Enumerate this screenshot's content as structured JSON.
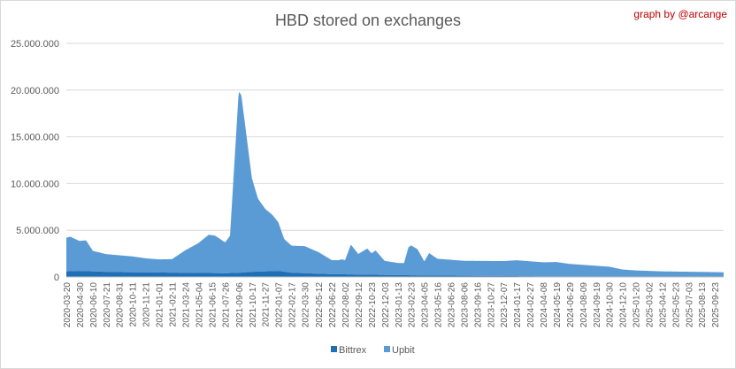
{
  "chart_data": {
    "type": "area",
    "stacked": true,
    "title": "HBD stored on exchanges",
    "annotation": "graph by @arcange",
    "y_ticks": [
      "0",
      "5.000.000",
      "10.000.000",
      "15.000.000",
      "20.000.000",
      "25.000.000"
    ],
    "ylim": [
      0,
      25000000
    ],
    "grid": "horizontal",
    "legend_position": "bottom",
    "x_tick_labels": [
      "2020-03-20",
      "2020-04-30",
      "2020-06-10",
      "2020-07-21",
      "2020-08-31",
      "2020-10-11",
      "2020-11-21",
      "2021-01-01",
      "2021-02-11",
      "2021-03-24",
      "2021-05-04",
      "2021-06-15",
      "2021-07-26",
      "2021-09-06",
      "2021-10-17",
      "2021-11-27",
      "2022-01-07",
      "2022-02-17",
      "2022-03-30",
      "2022-05-12",
      "2022-06-22",
      "2022-08-02",
      "2022-09-12",
      "2022-10-23",
      "2022-12-03",
      "2023-01-13",
      "2023-02-23",
      "2023-04-05",
      "2023-05-16",
      "2023-06-26",
      "2023-08-06",
      "2023-09-16",
      "2023-10-27",
      "2023-12-07",
      "2024-01-17",
      "2024-02-27",
      "2024-04-08",
      "2024-05-19",
      "2024-06-29",
      "2024-08-09",
      "2024-09-19",
      "2024-10-30",
      "2024-12-10",
      "2025-01-20",
      "2025-03-02",
      "2025-04-12",
      "2025-05-23",
      "2025-07-03",
      "2025-08-13",
      "2025-09-23"
    ],
    "series": [
      {
        "name": "Bittrex",
        "color": "#1f6fb7",
        "x": [
          "2020-03-20",
          "2020-04-30",
          "2020-06-10",
          "2020-07-21",
          "2020-08-31",
          "2020-10-11",
          "2020-11-21",
          "2021-01-01",
          "2021-02-11",
          "2021-03-24",
          "2021-05-04",
          "2021-06-15",
          "2021-07-26",
          "2021-09-06",
          "2021-10-17",
          "2021-11-27",
          "2022-01-07",
          "2022-02-17",
          "2022-03-30",
          "2022-05-12",
          "2022-06-22",
          "2022-08-02",
          "2022-09-12",
          "2022-10-23",
          "2022-12-03",
          "2023-01-13",
          "2023-02-23",
          "2023-04-05",
          "2023-05-16",
          "2023-06-26",
          "2023-08-06",
          "2023-09-16",
          "2023-10-27",
          "2023-12-07",
          "2024-01-17",
          "2024-02-27",
          "2024-04-08",
          "2024-05-19",
          "2024-06-29",
          "2024-08-09",
          "2024-09-19",
          "2024-10-30",
          "2024-12-10",
          "2025-01-20",
          "2025-03-02",
          "2025-04-12",
          "2025-05-23",
          "2025-07-03",
          "2025-08-13",
          "2025-09-23",
          "2025-10-20"
        ],
        "values": [
          600000,
          650000,
          600000,
          550000,
          520000,
          500000,
          500000,
          480000,
          460000,
          450000,
          430000,
          420000,
          400000,
          450000,
          550000,
          600000,
          650000,
          450000,
          400000,
          350000,
          300000,
          280000,
          260000,
          240000,
          220000,
          200000,
          180000,
          160000,
          150000,
          140000,
          130000,
          120000,
          110000,
          100000,
          90000,
          80000,
          70000,
          0,
          0,
          0,
          0,
          0,
          0,
          0,
          0,
          0,
          0,
          0,
          0,
          0,
          0
        ]
      },
      {
        "name": "Upbit",
        "color": "#5b9bd5",
        "x": [
          "2020-03-20",
          "2020-04-01",
          "2020-04-30",
          "2020-05-20",
          "2020-06-10",
          "2020-07-21",
          "2020-08-31",
          "2020-10-11",
          "2020-11-21",
          "2021-01-01",
          "2021-02-11",
          "2021-03-24",
          "2021-05-04",
          "2021-06-05",
          "2021-06-25",
          "2021-07-26",
          "2021-08-10",
          "2021-09-06",
          "2021-09-14",
          "2021-09-25",
          "2021-10-17",
          "2021-11-05",
          "2021-11-27",
          "2021-12-20",
          "2022-01-07",
          "2022-01-25",
          "2022-02-17",
          "2022-03-30",
          "2022-05-12",
          "2022-06-22",
          "2022-07-10",
          "2022-07-25",
          "2022-08-02",
          "2022-08-20",
          "2022-09-12",
          "2022-10-10",
          "2022-10-23",
          "2022-11-05",
          "2022-12-03",
          "2023-01-13",
          "2023-02-01",
          "2023-02-15",
          "2023-02-23",
          "2023-03-15",
          "2023-04-05",
          "2023-04-20",
          "2023-05-16",
          "2023-06-26",
          "2023-08-06",
          "2023-09-16",
          "2023-10-27",
          "2023-12-07",
          "2024-01-17",
          "2024-02-27",
          "2024-04-08",
          "2024-05-19",
          "2024-06-29",
          "2024-08-09",
          "2024-09-19",
          "2024-10-30",
          "2024-12-10",
          "2025-01-20",
          "2025-03-02",
          "2025-04-12",
          "2025-05-23",
          "2025-07-03",
          "2025-08-13",
          "2025-09-23",
          "2025-10-20"
        ],
        "values": [
          3600000,
          3700000,
          3200000,
          3300000,
          2200000,
          1900000,
          1800000,
          1700000,
          1500000,
          1400000,
          1450000,
          2400000,
          3200000,
          4100000,
          4000000,
          3300000,
          4000000,
          19400000,
          19000000,
          16000000,
          10000000,
          7800000,
          6700000,
          6000000,
          5200000,
          3500000,
          2900000,
          2900000,
          2300000,
          1500000,
          1500000,
          1600000,
          1500000,
          3200000,
          2200000,
          2800000,
          2300000,
          2600000,
          1500000,
          1300000,
          1300000,
          3000000,
          3200000,
          2800000,
          1500000,
          2400000,
          1800000,
          1700000,
          1600000,
          1600000,
          1600000,
          1600000,
          1700000,
          1600000,
          1500000,
          1600000,
          1400000,
          1300000,
          1200000,
          1100000,
          800000,
          700000,
          650000,
          600000,
          580000,
          560000,
          540000,
          520000,
          500000
        ]
      }
    ]
  }
}
